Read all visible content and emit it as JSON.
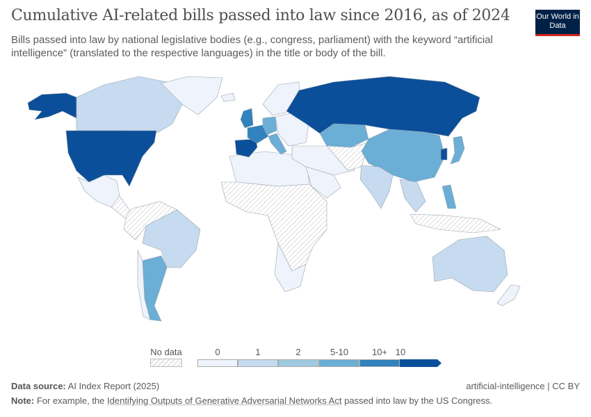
{
  "header": {
    "title": "Cumulative AI-related bills passed into law since 2016, as of 2024",
    "subtitle": "Bills passed into law by national legislative bodies (e.g., congress, parliament) with the keyword “artificial intelligence” (translated to the respective languages) in the title or body of the bill.",
    "logo": "Our World in Data"
  },
  "colors": {
    "no_data": "#e6e6e6",
    "0": "#eef3fc",
    "1": "#c6dbef",
    "2": "#9ecae1",
    "5-10": "#6baed6",
    "10+": "#3182bd",
    "10": "#0b4f9a",
    "border": "#9aa3ad"
  },
  "legend": {
    "no_data_label": "No data",
    "bins": [
      "0",
      "1",
      "2",
      "5-10",
      "10+"
    ],
    "last_label": "10"
  },
  "regions": [
    {
      "id": "alaska",
      "bin": "10"
    },
    {
      "id": "canada",
      "bin": "1"
    },
    {
      "id": "united-states",
      "bin": "10"
    },
    {
      "id": "greenland",
      "bin": "0"
    },
    {
      "id": "mexico",
      "bin": "0"
    },
    {
      "id": "central-america",
      "bin": "no_data"
    },
    {
      "id": "northern-south-america",
      "bin": "no_data"
    },
    {
      "id": "brazil",
      "bin": "1"
    },
    {
      "id": "argentina",
      "bin": "5-10"
    },
    {
      "id": "chile",
      "bin": "0"
    },
    {
      "id": "north-africa",
      "bin": "0"
    },
    {
      "id": "africa",
      "bin": "no_data"
    },
    {
      "id": "southern-africa",
      "bin": "0"
    },
    {
      "id": "iceland",
      "bin": "0"
    },
    {
      "id": "uk",
      "bin": "10+"
    },
    {
      "id": "spain",
      "bin": "10"
    },
    {
      "id": "france",
      "bin": "10+"
    },
    {
      "id": "germany",
      "bin": "5-10"
    },
    {
      "id": "italy",
      "bin": "5-10"
    },
    {
      "id": "scandinavia",
      "bin": "0"
    },
    {
      "id": "eastern-europe",
      "bin": "0"
    },
    {
      "id": "russia",
      "bin": "10"
    },
    {
      "id": "kazakhstan",
      "bin": "5-10"
    },
    {
      "id": "middle-east",
      "bin": "0"
    },
    {
      "id": "saudi-arabia",
      "bin": "0"
    },
    {
      "id": "central-asia",
      "bin": "no_data"
    },
    {
      "id": "china",
      "bin": "5-10"
    },
    {
      "id": "india",
      "bin": "1"
    },
    {
      "id": "southeast-asia",
      "bin": "1"
    },
    {
      "id": "south-korea",
      "bin": "10"
    },
    {
      "id": "japan",
      "bin": "5-10"
    },
    {
      "id": "philippines",
      "bin": "5-10"
    },
    {
      "id": "indonesia",
      "bin": "no_data"
    },
    {
      "id": "australia",
      "bin": "1"
    },
    {
      "id": "new-zealand",
      "bin": "0"
    }
  ],
  "footer": {
    "source_label": "Data source:",
    "source": "AI Index Report (2025)",
    "right": "artificial-intelligence | CC BY",
    "note_label": "Note:",
    "note_pre": "For example, the",
    "note_link": "Identifying Outputs of Generative Adversarial Networks Act",
    "note_post": "passed into law by the US Congress."
  }
}
